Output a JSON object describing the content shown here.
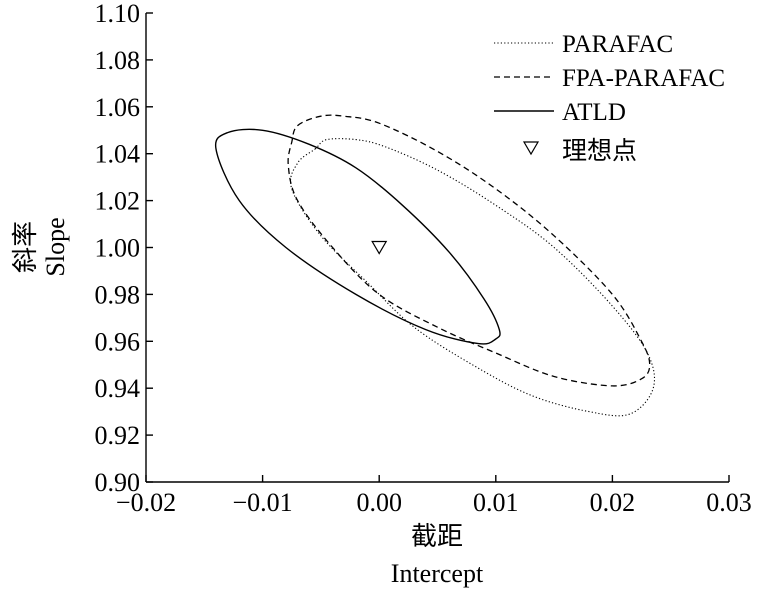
{
  "chart_data": {
    "type": "line",
    "xlabel_cn": "截距",
    "xlabel_en": "Intercept",
    "ylabel_cn": "斜率",
    "ylabel_en": "Slope",
    "xlim": [
      -0.02,
      0.03
    ],
    "ylim": [
      0.9,
      1.1
    ],
    "x_ticks": [
      "−0.02",
      "−0.01",
      "0.00",
      "0.01",
      "0.02",
      "0.03"
    ],
    "y_ticks": [
      "1.10",
      "1.08",
      "1.06",
      "1.04",
      "1.02",
      "1.00",
      "0.98",
      "0.96",
      "0.94",
      "0.92",
      "0.90"
    ],
    "x_tick_values": [
      -0.02,
      -0.01,
      0.0,
      0.01,
      0.02,
      0.03
    ],
    "y_tick_values": [
      1.1,
      1.08,
      1.06,
      1.04,
      1.02,
      1.0,
      0.98,
      0.96,
      0.94,
      0.92,
      0.9
    ],
    "legend_position": "top-right",
    "series": [
      {
        "name": "PARAFAC",
        "style": "dotted",
        "x": [
          -0.0055,
          -0.0045,
          -0.002,
          0.0005,
          0.005,
          0.01,
          0.015,
          0.02,
          0.023,
          0.0235,
          0.0215,
          0.018,
          0.013,
          0.008,
          0.003,
          -0.001,
          -0.005,
          -0.0075,
          -0.007,
          -0.0055
        ],
        "y": [
          1.042,
          1.046,
          1.046,
          1.043,
          1.033,
          1.018,
          1.0,
          0.975,
          0.955,
          0.94,
          0.929,
          0.93,
          0.937,
          0.95,
          0.966,
          0.985,
          1.005,
          1.025,
          1.036,
          1.042
        ]
      },
      {
        "name": "FPA-PARAFAC",
        "style": "dashed",
        "x": [
          -0.007,
          -0.005,
          -0.003,
          0.0,
          0.005,
          0.01,
          0.015,
          0.02,
          0.0225,
          0.0232,
          0.0225,
          0.02,
          0.015,
          0.01,
          0.005,
          0.0,
          -0.004,
          -0.007,
          -0.0078,
          -0.0075,
          -0.007
        ],
        "y": [
          1.052,
          1.056,
          1.056,
          1.053,
          1.041,
          1.025,
          1.005,
          0.98,
          0.96,
          0.95,
          0.944,
          0.941,
          0.945,
          0.955,
          0.966,
          0.98,
          1.0,
          1.02,
          1.035,
          1.045,
          1.052
        ]
      },
      {
        "name": "ATLD",
        "style": "solid",
        "x": [
          -0.014,
          -0.013,
          -0.01,
          -0.006,
          -0.002,
          0.002,
          0.006,
          0.009,
          0.0103,
          0.01,
          0.0085,
          0.004,
          -0.002,
          -0.008,
          -0.012,
          -0.014
        ],
        "y": [
          1.042,
          1.049,
          1.05,
          1.044,
          1.034,
          1.018,
          0.998,
          0.978,
          0.965,
          0.961,
          0.959,
          0.965,
          0.98,
          1.0,
          1.02,
          1.042
        ]
      }
    ],
    "points": [
      {
        "name": "理想点",
        "marker": "triangle-down",
        "x": 0.0,
        "y": 1.0
      }
    ]
  }
}
